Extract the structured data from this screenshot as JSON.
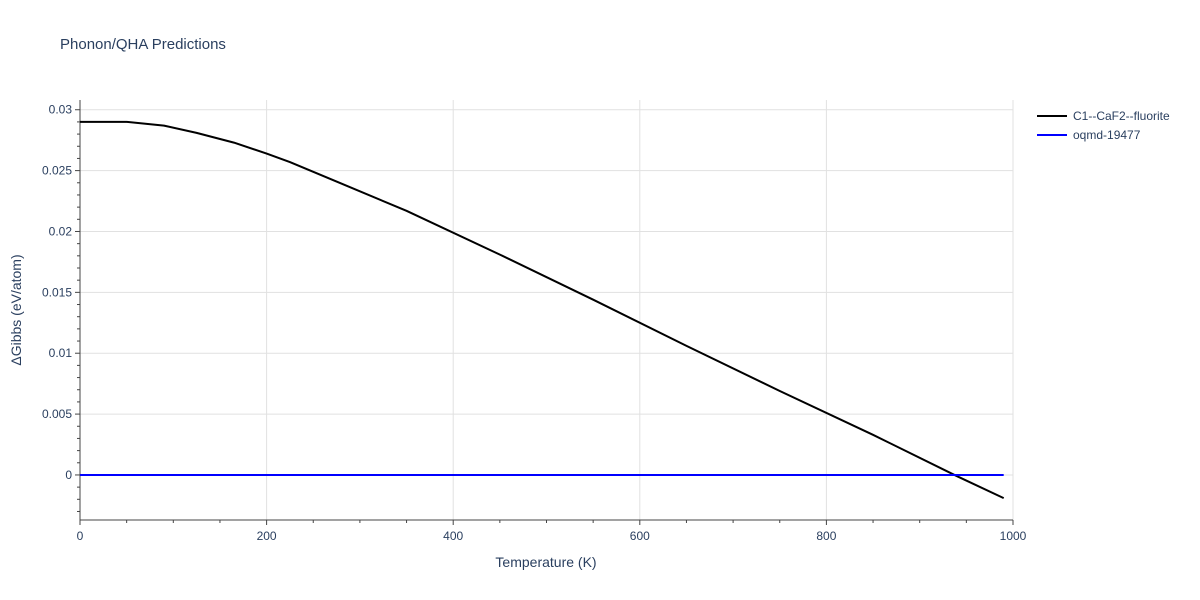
{
  "chart_data": {
    "type": "line",
    "title": "Phonon/QHA Predictions",
    "xlabel": "Temperature (K)",
    "ylabel": "ΔGibbs (eV/atom)",
    "xlim": [
      0,
      1000
    ],
    "ylim": [
      -0.0037,
      0.0308
    ],
    "xticks": [
      0,
      200,
      400,
      600,
      800,
      1000
    ],
    "xtick_labels": [
      "0",
      "200",
      "400",
      "600",
      "800",
      "1000"
    ],
    "yticks": [
      0,
      0.005,
      0.01,
      0.015,
      0.02,
      0.025,
      0.03
    ],
    "ytick_labels": [
      "0",
      "0.005",
      "0.01",
      "0.015",
      "0.02",
      "0.025",
      "0.03"
    ],
    "grid": true,
    "legend_position": "top-right",
    "series": [
      {
        "name": "C1--CaF2--fluorite",
        "color": "#000000",
        "x": [
          0,
          50,
          90,
          125,
          165,
          200,
          225,
          275,
          350,
          450,
          550,
          650,
          750,
          850,
          940,
          990
        ],
        "y": [
          0.029,
          0.029,
          0.0287,
          0.0281,
          0.0273,
          0.0264,
          0.0257,
          0.0241,
          0.0217,
          0.0181,
          0.0144,
          0.0106,
          0.0069,
          0.0033,
          -0.0001,
          -0.0019
        ]
      },
      {
        "name": "oqmd-19477",
        "color": "#0000ff",
        "x": [
          0,
          990
        ],
        "y": [
          0,
          0
        ]
      }
    ]
  }
}
